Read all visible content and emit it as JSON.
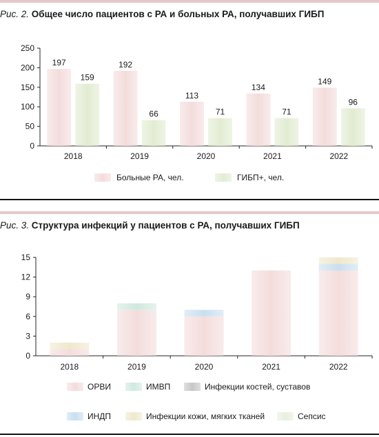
{
  "charts": [
    {
      "fig_label": "Рис. 2.",
      "title": "Общее число пациентов с РА и больных РА, получавших ГИБП",
      "chart_data": {
        "type": "bar",
        "categories": [
          "2018",
          "2019",
          "2020",
          "2021",
          "2022"
        ],
        "series": [
          {
            "name": "Больные РА, чел.",
            "values": [
              197,
              192,
              113,
              134,
              149
            ],
            "color": "#f4dcdc"
          },
          {
            "name": "ГИБП+, чел.",
            "values": [
              159,
              66,
              71,
              71,
              96
            ],
            "color": "#e2ecd2"
          }
        ],
        "yticks": [
          0,
          50,
          100,
          150,
          200,
          250
        ],
        "ylim": [
          0,
          250
        ],
        "data_labels": true,
        "legend": "bottom",
        "grid": false
      }
    },
    {
      "fig_label": "Рис. 3.",
      "title": "Структура инфекций у пациентов с РА, получавших ГИБП",
      "chart_data": {
        "type": "bar",
        "stacked": true,
        "categories": [
          "2018",
          "2019",
          "2020",
          "2021",
          "2022"
        ],
        "series": [
          {
            "name": "ОРВИ",
            "values": [
              1,
              7,
              6,
              13,
              13
            ],
            "color": "#f4dcdc"
          },
          {
            "name": "ИМВП",
            "values": [
              0,
              1,
              0,
              0,
              0
            ],
            "color": "#cfe9df"
          },
          {
            "name": "Инфекции костей, суставов",
            "values": [
              0,
              0,
              0,
              0,
              0
            ],
            "color": "#c6c6c6"
          },
          {
            "name": "ИНДП",
            "values": [
              0,
              0,
              1,
              0,
              1
            ],
            "color": "#c9dff0"
          },
          {
            "name": "Инфекции кожи, мягких тканей",
            "values": [
              1,
              0,
              0,
              0,
              1
            ],
            "color": "#efe8cc"
          },
          {
            "name": "Сепсис",
            "values": [
              0,
              0,
              0,
              0,
              0
            ],
            "color": "#e6efdf"
          }
        ],
        "yticks": [
          0,
          3,
          6,
          9,
          12,
          15
        ],
        "ylim": [
          0,
          15
        ],
        "legend": "bottom",
        "grid": false
      }
    }
  ]
}
